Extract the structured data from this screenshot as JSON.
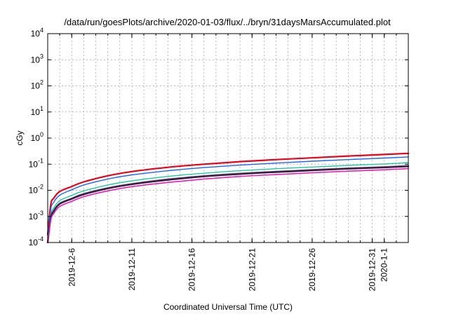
{
  "chart_data": {
    "type": "line",
    "title": "/data/run/goesPlots/archive/2020-01-03/flux/../bryn/31daysMarsAccumulated.plot",
    "xlabel": "Coordinated Universal Time (UTC)",
    "ylabel": "cGy",
    "y_scale": "log",
    "ylim": [
      0.0001,
      10000
    ],
    "y_ticks": [
      {
        "base": "10",
        "exp": "-4",
        "value": 0.0001
      },
      {
        "base": "10",
        "exp": "-3",
        "value": 0.001
      },
      {
        "base": "10",
        "exp": "-2",
        "value": 0.01
      },
      {
        "base": "10",
        "exp": "-1",
        "value": 0.1
      },
      {
        "base": "10",
        "exp": "0",
        "value": 1
      },
      {
        "base": "10",
        "exp": "1",
        "value": 10
      },
      {
        "base": "10",
        "exp": "2",
        "value": 100
      },
      {
        "base": "10",
        "exp": "3",
        "value": 1000
      },
      {
        "base": "10",
        "exp": "4",
        "value": 10000
      }
    ],
    "xlim": [
      "2019-12-04",
      "2020-01-03"
    ],
    "x_ticks": [
      "2019-12-6",
      "2019-12-11",
      "2019-12-16",
      "2019-12-21",
      "2019-12-26",
      "2019-12-31",
      "2020-1-1"
    ],
    "x_tick_dates": [
      "2019-12-06",
      "2019-12-11",
      "2019-12-16",
      "2019-12-21",
      "2019-12-26",
      "2019-12-31",
      "2020-01-01"
    ],
    "grid": true,
    "legend": "none",
    "series": [
      {
        "color": "#e8001c",
        "width": 2.2,
        "x": [
          "2019-12-04",
          "2019-12-04T06:00",
          "2019-12-04T12:00",
          "2019-12-05",
          "2019-12-06",
          "2019-12-07",
          "2019-12-09",
          "2019-12-11",
          "2019-12-14",
          "2019-12-17",
          "2019-12-20",
          "2019-12-23",
          "2019-12-26",
          "2019-12-29",
          "2020-01-01",
          "2020-01-03"
        ],
        "values": [
          0.0002,
          0.0028,
          0.005,
          0.009,
          0.014,
          0.021,
          0.036,
          0.052,
          0.076,
          0.1,
          0.125,
          0.15,
          0.175,
          0.205,
          0.235,
          0.26
        ]
      },
      {
        "color": "#1e64ff",
        "width": 1.4,
        "x": [
          "2019-12-04",
          "2019-12-04T06:00",
          "2019-12-04T12:00",
          "2019-12-05",
          "2019-12-06",
          "2019-12-07",
          "2019-12-09",
          "2019-12-11",
          "2019-12-14",
          "2019-12-17",
          "2019-12-20",
          "2019-12-23",
          "2019-12-26",
          "2019-12-29",
          "2020-01-01",
          "2020-01-03"
        ],
        "values": [
          0.00015,
          0.0018,
          0.0035,
          0.0065,
          0.0105,
          0.016,
          0.027,
          0.039,
          0.056,
          0.074,
          0.092,
          0.11,
          0.13,
          0.15,
          0.172,
          0.19
        ]
      },
      {
        "color": "#22c8a0",
        "width": 1.4,
        "x": [
          "2019-12-04",
          "2019-12-04T06:00",
          "2019-12-04T12:00",
          "2019-12-05",
          "2019-12-06",
          "2019-12-07",
          "2019-12-09",
          "2019-12-11",
          "2019-12-14",
          "2019-12-17",
          "2019-12-20",
          "2019-12-23",
          "2019-12-26",
          "2019-12-29",
          "2020-01-01",
          "2020-01-03"
        ],
        "values": [
          0.0001,
          0.0011,
          0.0021,
          0.004,
          0.0064,
          0.0095,
          0.016,
          0.023,
          0.034,
          0.045,
          0.056,
          0.067,
          0.078,
          0.09,
          0.102,
          0.115
        ]
      },
      {
        "color": "#7a5aa0",
        "width": 1.6,
        "x": [
          "2019-12-04",
          "2019-12-04T06:00",
          "2019-12-04T12:00",
          "2019-12-05",
          "2019-12-06",
          "2019-12-07",
          "2019-12-09",
          "2019-12-11",
          "2019-12-14",
          "2019-12-17",
          "2019-12-20",
          "2019-12-23",
          "2019-12-26",
          "2019-12-29",
          "2020-01-01",
          "2020-01-03"
        ],
        "values": [
          0.0001,
          0.0009,
          0.0017,
          0.0032,
          0.005,
          0.0075,
          0.0125,
          0.018,
          0.027,
          0.036,
          0.045,
          0.053,
          0.062,
          0.071,
          0.08,
          0.088
        ]
      },
      {
        "color": "#3c1e3c",
        "width": 2.4,
        "x": [
          "2019-12-04",
          "2019-12-04T06:00",
          "2019-12-04T12:00",
          "2019-12-05",
          "2019-12-06",
          "2019-12-07",
          "2019-12-09",
          "2019-12-11",
          "2019-12-14",
          "2019-12-17",
          "2019-12-20",
          "2019-12-23",
          "2019-12-26",
          "2019-12-29",
          "2020-01-01",
          "2020-01-03"
        ],
        "values": [
          0.0001,
          0.00085,
          0.0016,
          0.003,
          0.0047,
          0.007,
          0.0118,
          0.017,
          0.025,
          0.034,
          0.042,
          0.05,
          0.058,
          0.067,
          0.075,
          0.083
        ]
      },
      {
        "color": "#e61eb4",
        "width": 1.6,
        "x": [
          "2019-12-04",
          "2019-12-04T06:00",
          "2019-12-04T12:00",
          "2019-12-05",
          "2019-12-06",
          "2019-12-07",
          "2019-12-09",
          "2019-12-11",
          "2019-12-14",
          "2019-12-17",
          "2019-12-20",
          "2019-12-23",
          "2019-12-26",
          "2019-12-29",
          "2020-01-01",
          "2020-01-03"
        ],
        "values": [
          0.0001,
          0.0007,
          0.0013,
          0.0024,
          0.0038,
          0.0057,
          0.0095,
          0.0138,
          0.02,
          0.027,
          0.034,
          0.04,
          0.047,
          0.054,
          0.061,
          0.068
        ]
      }
    ]
  }
}
